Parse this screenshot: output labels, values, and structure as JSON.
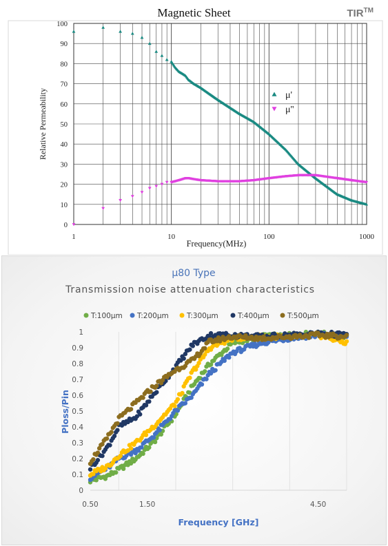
{
  "brand": {
    "text": "TIR",
    "sup": "TM"
  },
  "chart_data": [
    {
      "type": "scatter",
      "title": "Magnetic Sheet",
      "xlabel": "Frequency(MHz)",
      "ylabel": "Relative Permeability",
      "xscale": "log",
      "xlim": [
        1,
        1000
      ],
      "ylim": [
        0,
        100
      ],
      "xticks": [
        "1",
        "10",
        "100",
        "1000"
      ],
      "yticks": [
        "0",
        "10",
        "20",
        "30",
        "40",
        "50",
        "60",
        "70",
        "80",
        "90",
        "100"
      ],
      "grid": true,
      "legend_position": "right",
      "series": [
        {
          "name": "μ'",
          "marker": "triangle-up",
          "color": "#1a8a82",
          "points": [
            [
              1,
              96
            ],
            [
              2,
              98
            ],
            [
              3,
              96
            ],
            [
              4,
              95
            ],
            [
              5,
              93
            ],
            [
              6,
              90
            ],
            [
              7,
              86
            ],
            [
              8,
              84
            ],
            [
              9,
              82
            ],
            [
              10,
              81
            ],
            [
              11,
              78
            ],
            [
              12,
              76
            ],
            [
              13,
              75
            ],
            [
              14,
              74
            ],
            [
              15,
              72
            ],
            [
              17,
              70
            ],
            [
              20,
              68
            ],
            [
              30,
              62
            ],
            [
              50,
              55
            ],
            [
              70,
              51
            ],
            [
              100,
              45
            ],
            [
              150,
              37
            ],
            [
              200,
              30
            ],
            [
              300,
              23
            ],
            [
              500,
              15
            ],
            [
              700,
              12
            ],
            [
              1000,
              10
            ]
          ]
        },
        {
          "name": "μ''",
          "marker": "triangle-down",
          "color": "#e040e0",
          "points": [
            [
              1,
              0
            ],
            [
              2,
              8
            ],
            [
              3,
              12
            ],
            [
              4,
              14
            ],
            [
              5,
              16
            ],
            [
              6,
              18
            ],
            [
              7,
              19
            ],
            [
              8,
              20
            ],
            [
              9,
              21
            ],
            [
              10,
              21
            ],
            [
              11,
              21.5
            ],
            [
              12,
              22
            ],
            [
              13,
              22.5
            ],
            [
              14,
              23
            ],
            [
              15,
              23
            ],
            [
              17,
              22.5
            ],
            [
              20,
              22
            ],
            [
              30,
              21.5
            ],
            [
              50,
              21.5
            ],
            [
              70,
              22
            ],
            [
              100,
              23
            ],
            [
              150,
              24
            ],
            [
              200,
              24.5
            ],
            [
              300,
              24.5
            ],
            [
              500,
              23
            ],
            [
              700,
              22
            ],
            [
              1000,
              21
            ]
          ]
        }
      ]
    },
    {
      "type": "scatter",
      "title": "μ80 Type",
      "subtitle": "Transmission noise attenuation characteristics",
      "xlabel": "Frequency [GHz]",
      "ylabel": "Ploss/Pin",
      "xlim": [
        0.5,
        5
      ],
      "ylim": [
        0,
        1
      ],
      "xticks": [
        "0.50",
        "1.50",
        "4.50"
      ],
      "yticks": [
        "0",
        "0.1",
        "0.2",
        "0.3",
        "0.4",
        "0.5",
        "0.6",
        "0.7",
        "0.8",
        "0.9",
        "1"
      ],
      "grid": "vertical",
      "legend_position": "top",
      "series": [
        {
          "name": "T:100μm",
          "color": "#70ad47",
          "points": [
            [
              0.5,
              0.06
            ],
            [
              0.8,
              0.09
            ],
            [
              1.0,
              0.13
            ],
            [
              1.3,
              0.2
            ],
            [
              1.6,
              0.3
            ],
            [
              2.0,
              0.48
            ],
            [
              2.3,
              0.66
            ],
            [
              2.6,
              0.8
            ],
            [
              3.0,
              0.93
            ],
            [
              3.5,
              0.97
            ],
            [
              4.0,
              0.98
            ],
            [
              4.5,
              0.99
            ],
            [
              5.0,
              0.97
            ]
          ]
        },
        {
          "name": "T:200μm",
          "color": "#4472c4",
          "points": [
            [
              0.5,
              0.08
            ],
            [
              0.8,
              0.14
            ],
            [
              1.0,
              0.2
            ],
            [
              1.3,
              0.25
            ],
            [
              1.6,
              0.34
            ],
            [
              2.0,
              0.5
            ],
            [
              2.3,
              0.6
            ],
            [
              2.6,
              0.74
            ],
            [
              3.0,
              0.87
            ],
            [
              3.5,
              0.93
            ],
            [
              4.0,
              0.96
            ],
            [
              4.5,
              0.98
            ],
            [
              5.0,
              0.98
            ]
          ]
        },
        {
          "name": "T:300μm",
          "color": "#ffc000",
          "points": [
            [
              0.5,
              0.1
            ],
            [
              0.8,
              0.15
            ],
            [
              1.0,
              0.22
            ],
            [
              1.3,
              0.3
            ],
            [
              1.6,
              0.4
            ],
            [
              2.0,
              0.55
            ],
            [
              2.3,
              0.75
            ],
            [
              2.6,
              0.9
            ],
            [
              3.0,
              0.96
            ],
            [
              3.5,
              0.97
            ],
            [
              4.0,
              0.97
            ],
            [
              4.5,
              0.98
            ],
            [
              5.0,
              0.93
            ]
          ]
        },
        {
          "name": "T:400μm",
          "color": "#203864",
          "points": [
            [
              0.5,
              0.14
            ],
            [
              0.8,
              0.27
            ],
            [
              1.0,
              0.4
            ],
            [
              1.3,
              0.46
            ],
            [
              1.6,
              0.6
            ],
            [
              2.0,
              0.78
            ],
            [
              2.3,
              0.92
            ],
            [
              2.6,
              0.98
            ],
            [
              3.0,
              0.98
            ],
            [
              3.5,
              0.97
            ],
            [
              4.0,
              0.98
            ],
            [
              4.5,
              0.99
            ],
            [
              5.0,
              0.98
            ]
          ]
        },
        {
          "name": "T:500μm",
          "color": "#8c6d1f",
          "points": [
            [
              0.5,
              0.18
            ],
            [
              0.8,
              0.33
            ],
            [
              1.0,
              0.45
            ],
            [
              1.3,
              0.55
            ],
            [
              1.6,
              0.65
            ],
            [
              2.0,
              0.76
            ],
            [
              2.3,
              0.82
            ],
            [
              2.6,
              0.94
            ],
            [
              3.0,
              0.97
            ],
            [
              3.5,
              0.96
            ],
            [
              4.0,
              0.97
            ],
            [
              4.5,
              0.98
            ],
            [
              5.0,
              0.97
            ]
          ]
        }
      ]
    }
  ]
}
